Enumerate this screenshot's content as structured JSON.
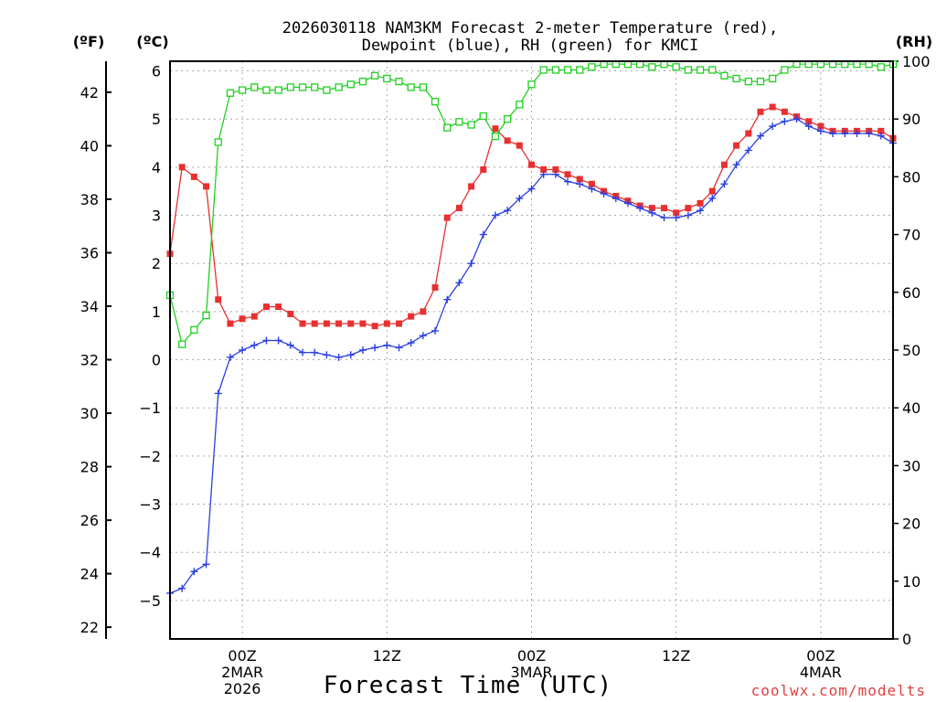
{
  "chart_data": {
    "type": "line",
    "title_line1": "2026030118 NAM3KM Forecast 2-meter Temperature (red),",
    "title_line2": "Dewpoint (blue), RH (green) for KMCI",
    "xlabel": "Forecast Time (UTC)",
    "credit": "coolwx.com/modelts",
    "units": {
      "fahrenheit": "(ºF)",
      "celsius": "(ºC)",
      "rh": "(RH)"
    },
    "x_start_hour": 0,
    "x_step_hours": 1,
    "x_range_hours": [
      -6,
      54
    ],
    "ylim_celsius": [
      -5.8,
      6.2
    ],
    "ylim_rh": [
      0,
      100
    ],
    "x_ticks": [
      {
        "hour": 0,
        "label1": "00Z",
        "label2": "2MAR",
        "label3": "2026"
      },
      {
        "hour": 12,
        "label1": "12Z",
        "label2": "",
        "label3": ""
      },
      {
        "hour": 24,
        "label1": "00Z",
        "label2": "3MAR",
        "label3": ""
      },
      {
        "hour": 36,
        "label1": "12Z",
        "label2": "",
        "label3": ""
      },
      {
        "hour": 48,
        "label1": "00Z",
        "label2": "4MAR",
        "label3": ""
      }
    ],
    "celsius_ticks": [
      -5,
      -4,
      -3,
      -2,
      -1,
      0,
      1,
      2,
      3,
      4,
      5,
      6
    ],
    "celsius_tick_labels": [
      "−5",
      "−4",
      "−3",
      "−2",
      "−1",
      "0",
      "1",
      "2",
      "3",
      "4",
      "5",
      "6"
    ],
    "fahrenheit_ticks": [
      22,
      24,
      26,
      28,
      30,
      32,
      34,
      36,
      38,
      40,
      42
    ],
    "rh_ticks": [
      0,
      10,
      20,
      30,
      40,
      50,
      60,
      70,
      80,
      90,
      100
    ],
    "series": [
      {
        "name": "Temperature",
        "color": "#e83030",
        "marker": "filled-square",
        "hours": [
          -6,
          -5,
          -4,
          -3,
          -2,
          -1,
          0,
          1,
          2,
          3,
          4,
          5,
          6,
          7,
          8,
          9,
          10,
          11,
          12,
          13,
          14,
          15,
          16,
          17,
          18,
          19,
          20,
          21,
          22,
          23,
          24,
          25,
          26,
          27,
          28,
          29,
          30,
          31,
          32,
          33,
          34,
          35,
          36,
          37,
          38,
          39,
          40,
          41,
          42,
          43,
          44,
          45,
          46,
          47,
          48,
          49,
          50,
          51,
          52,
          53,
          54
        ],
        "values": [
          2.2,
          4.0,
          3.8,
          3.6,
          1.25,
          0.75,
          0.85,
          0.9,
          1.1,
          1.1,
          0.95,
          0.75,
          0.75,
          0.75,
          0.75,
          0.75,
          0.75,
          0.7,
          0.75,
          0.75,
          0.9,
          1.0,
          1.5,
          2.95,
          3.15,
          3.6,
          3.95,
          4.8,
          4.55,
          4.45,
          4.05,
          3.95,
          3.95,
          3.85,
          3.75,
          3.65,
          3.5,
          3.4,
          3.3,
          3.2,
          3.15,
          3.15,
          3.05,
          3.15,
          3.25,
          3.5,
          4.05,
          4.45,
          4.7,
          5.15,
          5.25,
          5.15,
          5.05,
          4.95,
          4.85,
          4.75,
          4.75,
          4.75,
          4.75,
          4.75,
          4.6
        ]
      },
      {
        "name": "Dewpoint",
        "color": "#2a40e0",
        "marker": "plus",
        "hours": [
          -6,
          -5,
          -4,
          -3,
          -2,
          -1,
          0,
          1,
          2,
          3,
          4,
          5,
          6,
          7,
          8,
          9,
          10,
          11,
          12,
          13,
          14,
          15,
          16,
          17,
          18,
          19,
          20,
          21,
          22,
          23,
          24,
          25,
          26,
          27,
          28,
          29,
          30,
          31,
          32,
          33,
          34,
          35,
          36,
          37,
          38,
          39,
          40,
          41,
          42,
          43,
          44,
          45,
          46,
          47,
          48,
          49,
          50,
          51,
          52,
          53,
          54
        ],
        "values": [
          -4.85,
          -4.75,
          -4.4,
          -4.25,
          -0.7,
          0.05,
          0.2,
          0.3,
          0.4,
          0.4,
          0.3,
          0.15,
          0.15,
          0.1,
          0.05,
          0.1,
          0.2,
          0.25,
          0.3,
          0.25,
          0.35,
          0.5,
          0.6,
          1.25,
          1.6,
          2.0,
          2.6,
          3.0,
          3.1,
          3.35,
          3.55,
          3.85,
          3.85,
          3.7,
          3.65,
          3.55,
          3.45,
          3.35,
          3.25,
          3.15,
          3.05,
          2.95,
          2.95,
          3.0,
          3.1,
          3.35,
          3.65,
          4.05,
          4.35,
          4.65,
          4.85,
          4.95,
          5.0,
          4.85,
          4.75,
          4.7,
          4.7,
          4.7,
          4.7,
          4.65,
          4.5
        ]
      },
      {
        "name": "RH",
        "color": "#20d020",
        "marker": "open-square",
        "hours": [
          -6,
          -5,
          -4,
          -3,
          -2,
          -1,
          0,
          1,
          2,
          3,
          4,
          5,
          6,
          7,
          8,
          9,
          10,
          11,
          12,
          13,
          14,
          15,
          16,
          17,
          18,
          19,
          20,
          21,
          22,
          23,
          24,
          25,
          26,
          27,
          28,
          29,
          30,
          31,
          32,
          33,
          34,
          35,
          36,
          37,
          38,
          39,
          40,
          41,
          42,
          43,
          44,
          45,
          46,
          47,
          48,
          49,
          50,
          51,
          52,
          53,
          54
        ],
        "values": [
          59.5,
          51,
          53.5,
          56,
          86,
          94.5,
          95,
          95.5,
          95,
          95,
          95.5,
          95.5,
          95.5,
          95,
          95.5,
          96,
          96.5,
          97.5,
          97,
          96.5,
          95.5,
          95.5,
          93,
          88.5,
          89.5,
          89,
          90.5,
          87,
          90,
          92.5,
          96,
          98.5,
          98.5,
          98.5,
          98.5,
          99,
          99.5,
          99.5,
          99.5,
          99.5,
          99,
          99.5,
          99,
          98.5,
          98.5,
          98.5,
          97.5,
          97,
          96.5,
          96.5,
          97,
          98.5,
          99.5,
          99.5,
          99.5,
          99.5,
          99.5,
          99.5,
          99.5,
          99,
          99.5
        ]
      }
    ]
  }
}
